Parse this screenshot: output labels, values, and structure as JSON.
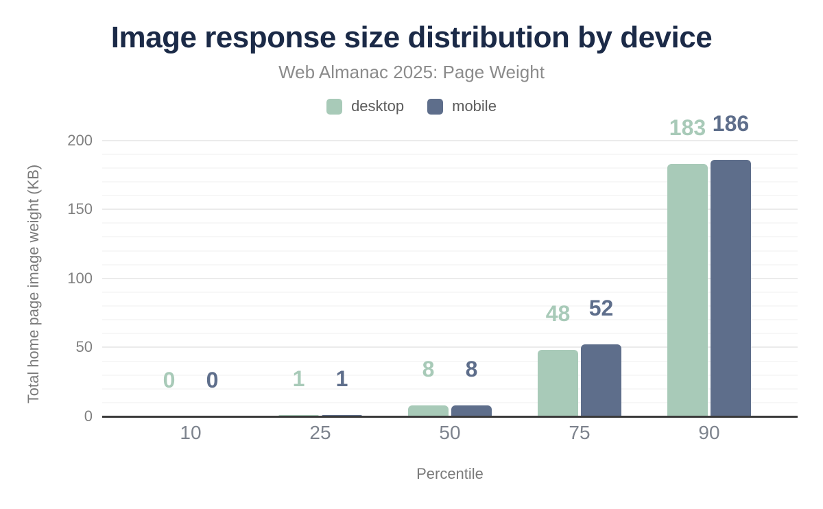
{
  "chart_data": {
    "type": "bar",
    "title": "Image response size distribution by device",
    "subtitle": "Web Almanac 2025: Page Weight",
    "xlabel": "Percentile",
    "ylabel": "Total home page image weight (KB)",
    "categories": [
      "10",
      "25",
      "50",
      "75",
      "90"
    ],
    "series": [
      {
        "name": "desktop",
        "values": [
          0,
          1,
          8,
          48,
          183
        ],
        "color": "#a8cab8"
      },
      {
        "name": "mobile",
        "values": [
          0,
          1,
          8,
          52,
          186
        ],
        "color": "#5e6e8b"
      }
    ],
    "value_labels": true,
    "ylim": [
      0,
      200
    ],
    "yticks": [
      "0",
      "50",
      "100",
      "150",
      "200"
    ],
    "grid": {
      "minor_step": 10,
      "major_step": 50
    },
    "legend_position": "top"
  },
  "colors": {
    "background": "#ffffff",
    "title": "#1b2a47",
    "subtitle": "#8b8b8b",
    "axis_line": "#3a3a3a",
    "y_tick_label": "#7f7f7f",
    "x_tick_label": "#7d838d",
    "axis_title": "#7a7a7a",
    "grid_major": "#ebebeb",
    "grid_minor": "#f7f7f7"
  }
}
